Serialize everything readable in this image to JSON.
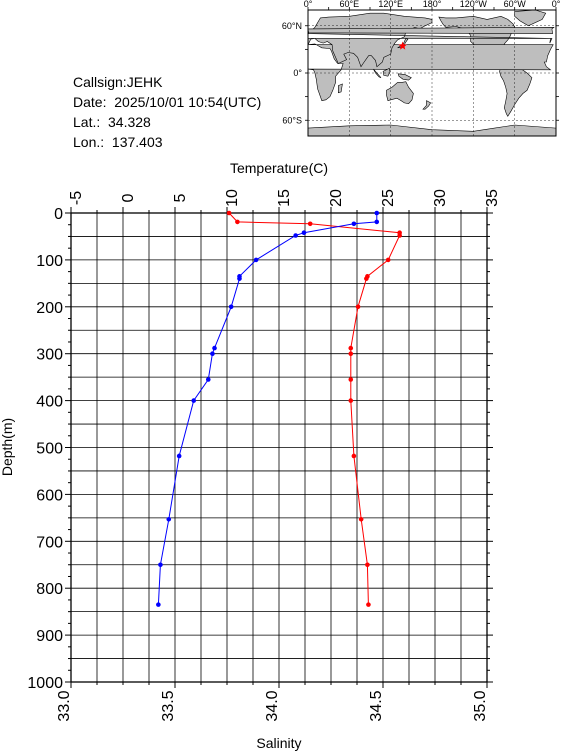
{
  "info": {
    "callsign": "Callsign:JEHK",
    "date": "Date:  2025/10/01 10:54(UTC)",
    "lat": "Lat.:  34.328",
    "lon": "Lon.:  137.403"
  },
  "map": {
    "lon_labels": [
      "0°",
      "60°E",
      "120°E",
      "180°",
      "120°W",
      "60°W",
      "0°"
    ],
    "lat_labels": [
      "60°N",
      "0°",
      "60°S"
    ],
    "marker": {
      "lat": 34.328,
      "lon": 137.403,
      "color": "#ff0000"
    },
    "land_color": "#bebebe",
    "ocean_color": "#ffffff"
  },
  "chart_data": {
    "type": "line",
    "ylabel": "Depth(m)",
    "ylim": [
      1000,
      0
    ],
    "yticks": [
      0,
      100,
      200,
      300,
      400,
      500,
      600,
      700,
      800,
      900,
      1000
    ],
    "temperature_axis": {
      "label": "Temperature(C)",
      "range": [
        -5,
        35
      ],
      "ticks": [
        -5,
        0,
        5,
        10,
        15,
        20,
        25,
        30,
        35
      ]
    },
    "salinity_axis": {
      "label": "Salinity",
      "range": [
        33.0,
        35.0
      ],
      "ticks": [
        "33.0",
        "33.5",
        "34.0",
        "34.5",
        "35.0"
      ]
    },
    "grid": true,
    "series": [
      {
        "quantity": "temperature",
        "color": "#ff0000",
        "points": [
          {
            "depth": 0,
            "value": 10.2
          },
          {
            "depth": 19,
            "value": 11.0
          },
          {
            "depth": 23,
            "value": 18.0
          },
          {
            "depth": 42,
            "value": 26.6
          },
          {
            "depth": 48,
            "value": 26.6
          },
          {
            "depth": 100,
            "value": 25.5
          },
          {
            "depth": 135,
            "value": 23.5
          },
          {
            "depth": 140,
            "value": 23.4
          },
          {
            "depth": 200,
            "value": 22.6
          },
          {
            "depth": 288,
            "value": 21.9
          },
          {
            "depth": 300,
            "value": 21.9
          },
          {
            "depth": 355,
            "value": 21.9
          },
          {
            "depth": 400,
            "value": 21.9
          },
          {
            "depth": 518,
            "value": 22.2
          },
          {
            "depth": 653,
            "value": 22.9
          },
          {
            "depth": 750,
            "value": 23.5
          },
          {
            "depth": 835,
            "value": 23.6
          }
        ]
      },
      {
        "quantity": "salinity",
        "color": "#0000ff",
        "points": [
          {
            "depth": 0,
            "value": 34.47
          },
          {
            "depth": 19,
            "value": 34.47
          },
          {
            "depth": 23,
            "value": 34.36
          },
          {
            "depth": 42,
            "value": 34.12
          },
          {
            "depth": 48,
            "value": 34.08
          },
          {
            "depth": 100,
            "value": 33.89
          },
          {
            "depth": 135,
            "value": 33.81
          },
          {
            "depth": 140,
            "value": 33.81
          },
          {
            "depth": 200,
            "value": 33.77
          },
          {
            "depth": 288,
            "value": 33.69
          },
          {
            "depth": 300,
            "value": 33.68
          },
          {
            "depth": 355,
            "value": 33.66
          },
          {
            "depth": 400,
            "value": 33.59
          },
          {
            "depth": 518,
            "value": 33.52
          },
          {
            "depth": 653,
            "value": 33.47
          },
          {
            "depth": 750,
            "value": 33.43
          },
          {
            "depth": 835,
            "value": 33.42
          }
        ]
      }
    ]
  }
}
